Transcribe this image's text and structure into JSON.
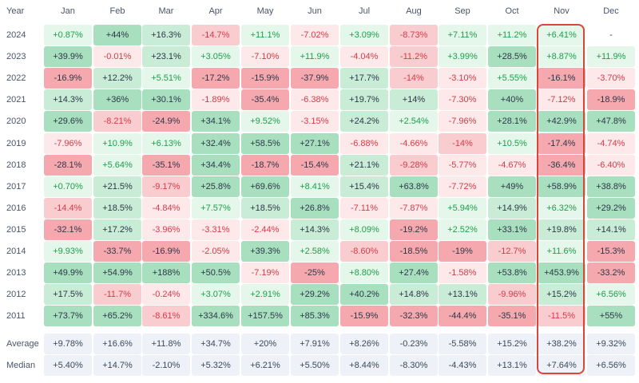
{
  "table": {
    "year_header": "Year",
    "months": [
      "Jan",
      "Feb",
      "Mar",
      "Apr",
      "May",
      "Jun",
      "Jul",
      "Aug",
      "Sep",
      "Oct",
      "Nov",
      "Dec"
    ],
    "rows": [
      {
        "year": "2024",
        "values": [
          "+0.87%",
          "+44%",
          "+16.3%",
          "-14.7%",
          "+11.1%",
          "-7.02%",
          "+3.09%",
          "-8.73%",
          "+7.11%",
          "+11.2%",
          "+6.41%",
          "-"
        ]
      },
      {
        "year": "2023",
        "values": [
          "+39.9%",
          "-0.01%",
          "+23.1%",
          "+3.05%",
          "-7.10%",
          "+11.9%",
          "-4.04%",
          "-11.2%",
          "+3.99%",
          "+28.5%",
          "+8.87%",
          "+11.9%"
        ]
      },
      {
        "year": "2022",
        "values": [
          "-16.9%",
          "+12.2%",
          "+5.51%",
          "-17.2%",
          "-15.9%",
          "-37.9%",
          "+17.7%",
          "-14%",
          "-3.10%",
          "+5.55%",
          "-16.1%",
          "-3.70%"
        ]
      },
      {
        "year": "2021",
        "values": [
          "+14.3%",
          "+36%",
          "+30.1%",
          "-1.89%",
          "-35.4%",
          "-6.38%",
          "+19.7%",
          "+14%",
          "-7.30%",
          "+40%",
          "-7.12%",
          "-18.9%"
        ]
      },
      {
        "year": "2020",
        "values": [
          "+29.6%",
          "-8.21%",
          "-24.9%",
          "+34.1%",
          "+9.52%",
          "-3.15%",
          "+24.2%",
          "+2.54%",
          "-7.96%",
          "+28.1%",
          "+42.9%",
          "+47.8%"
        ]
      },
      {
        "year": "2019",
        "values": [
          "-7.96%",
          "+10.9%",
          "+6.13%",
          "+32.4%",
          "+58.5%",
          "+27.1%",
          "-6.88%",
          "-4.66%",
          "-14%",
          "+10.5%",
          "-17.4%",
          "-4.74%"
        ]
      },
      {
        "year": "2018",
        "values": [
          "-28.1%",
          "+5.64%",
          "-35.1%",
          "+34.4%",
          "-18.7%",
          "-15.4%",
          "+21.1%",
          "-9.28%",
          "-5.77%",
          "-4.67%",
          "-36.4%",
          "-6.40%"
        ]
      },
      {
        "year": "2017",
        "values": [
          "+0.70%",
          "+21.5%",
          "-9.17%",
          "+25.8%",
          "+69.6%",
          "+8.41%",
          "+15.4%",
          "+63.8%",
          "-7.72%",
          "+49%",
          "+58.9%",
          "+38.8%"
        ]
      },
      {
        "year": "2016",
        "values": [
          "-14.4%",
          "+18.5%",
          "-4.84%",
          "+7.57%",
          "+18.5%",
          "+26.8%",
          "-7.11%",
          "-7.87%",
          "+5.94%",
          "+14.9%",
          "+6.32%",
          "+29.2%"
        ]
      },
      {
        "year": "2015",
        "values": [
          "-32.1%",
          "+17.2%",
          "-3.96%",
          "-3.31%",
          "-2.44%",
          "+14.3%",
          "+8.09%",
          "-19.2%",
          "+2.52%",
          "+33.1%",
          "+19.8%",
          "+14.1%"
        ]
      },
      {
        "year": "2014",
        "values": [
          "+9.93%",
          "-33.7%",
          "-16.9%",
          "-2.05%",
          "+39.3%",
          "+2.58%",
          "-8.60%",
          "-18.5%",
          "-19%",
          "-12.7%",
          "+11.6%",
          "-15.3%"
        ]
      },
      {
        "year": "2013",
        "values": [
          "+49.9%",
          "+54.9%",
          "+188%",
          "+50.5%",
          "-7.19%",
          "-25%",
          "+8.80%",
          "+27.4%",
          "-1.58%",
          "+53.8%",
          "+453.9%",
          "-33.2%"
        ]
      },
      {
        "year": "2012",
        "values": [
          "+17.5%",
          "-11.7%",
          "-0.24%",
          "+3.07%",
          "+2.91%",
          "+29.2%",
          "+40.2%",
          "+14.8%",
          "+13.1%",
          "-9.96%",
          "+15.2%",
          "+6.56%"
        ]
      },
      {
        "year": "2011",
        "values": [
          "+73.7%",
          "+65.2%",
          "-8.61%",
          "+334.6%",
          "+157.5%",
          "+85.3%",
          "-15.9%",
          "-32.3%",
          "-44.4%",
          "-35.1%",
          "-11.5%",
          "+55%"
        ]
      }
    ],
    "summary": [
      {
        "label": "Average",
        "values": [
          "+9.78%",
          "+16.6%",
          "+11.8%",
          "+34.7%",
          "+20%",
          "+7.91%",
          "+8.26%",
          "-0.23%",
          "-5.58%",
          "+15.2%",
          "+38.2%",
          "+9.32%"
        ]
      },
      {
        "label": "Median",
        "values": [
          "+5.40%",
          "+14.7%",
          "-2.10%",
          "+5.32%",
          "+6.21%",
          "+5.50%",
          "+8.44%",
          "-8.30%",
          "-4.43%",
          "+13.1%",
          "+7.64%",
          "+6.56%"
        ]
      }
    ],
    "highlighted_month": "Nov"
  },
  "colors": {
    "pos_text": "#1e9e4a",
    "neg_text": "#d63b47",
    "pos_strong_bg": "#a8dfbf",
    "pos_mid_bg": "#c8ecd6",
    "pos_light_bg": "#e4f7ea",
    "neg_strong_bg": "#f5a9ae",
    "neg_mid_bg": "#f9cccf",
    "neg_light_bg": "#fde9ea",
    "summary_bg": "#eef2f8",
    "highlight_border": "#d8473a"
  }
}
